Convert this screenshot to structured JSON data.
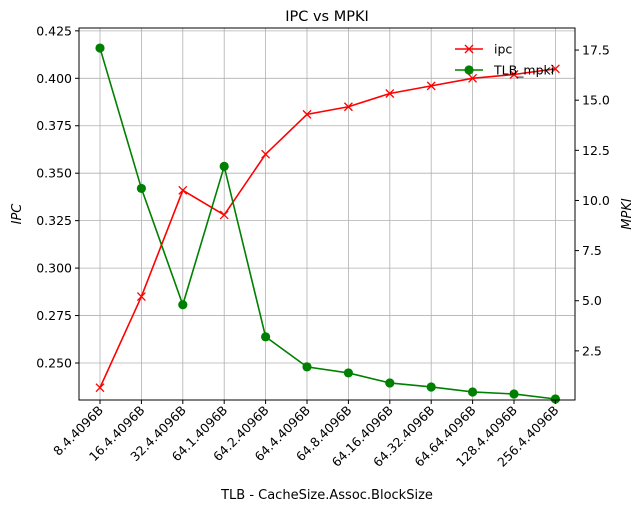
{
  "chart_data": {
    "type": "line",
    "title": "IPC vs MPKI",
    "xlabel": "TLB - CacheSize.Assoc.BlockSize",
    "ylabel_left": "IPC",
    "ylabel_right": "MPKI",
    "categories": [
      "8.4.4096B",
      "16.4.4096B",
      "32.4.4096B",
      "64.1.4096B",
      "64.2.4096B",
      "64.4.4096B",
      "64.8.4096B",
      "64.16.4096B",
      "64.32.4096B",
      "64.64.4096B",
      "128.4.4096B",
      "256.4.4096B"
    ],
    "ylim_left": [
      0.2305,
      0.4265
    ],
    "ylim_right": [
      0.05,
      18.6
    ],
    "yticks_left": [
      0.25,
      0.275,
      0.3,
      0.325,
      0.35,
      0.375,
      0.4,
      0.425
    ],
    "yticks_left_labels": [
      "0.250",
      "0.275",
      "0.300",
      "0.325",
      "0.350",
      "0.375",
      "0.400",
      "0.425"
    ],
    "yticks_right": [
      2.5,
      5.0,
      7.5,
      10.0,
      12.5,
      15.0,
      17.5
    ],
    "yticks_right_labels": [
      "2.5",
      "5.0",
      "7.5",
      "10.0",
      "12.5",
      "15.0",
      "17.5"
    ],
    "grid": true,
    "legend_position": "top-right",
    "series": [
      {
        "name": "ipc",
        "axis": "left",
        "color": "#ff0000",
        "marker": "x",
        "values": [
          0.237,
          0.285,
          0.341,
          0.328,
          0.36,
          0.381,
          0.385,
          0.392,
          0.396,
          0.4,
          0.402,
          0.405
        ]
      },
      {
        "name": "TLB_mpki",
        "axis": "right",
        "color": "#008000",
        "marker": "o",
        "values": [
          17.6,
          10.6,
          4.8,
          11.7,
          3.2,
          1.7,
          1.4,
          0.9,
          0.7,
          0.45,
          0.35,
          0.1
        ]
      }
    ]
  }
}
